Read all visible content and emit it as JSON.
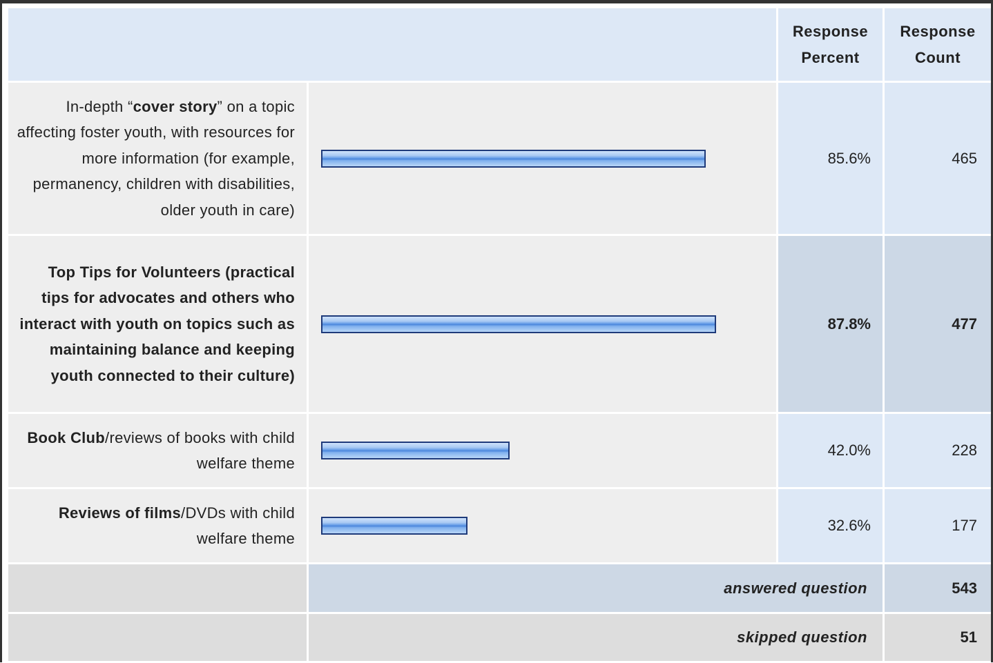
{
  "headers": {
    "percent": "Response Percent",
    "count": "Response Count"
  },
  "chart_data": {
    "type": "bar",
    "orientation": "horizontal",
    "categories": [
      "In-depth “cover story” on a topic affecting foster youth, with resources for more information (for example, permanency, children with disabilities, older youth in care)",
      "Top Tips for Volunteers (practical tips for advocates and others who interact with youth on topics such as maintaining balance and keeping youth connected to their culture)",
      "Book Club/reviews of books with child welfare theme",
      "Reviews of films/DVDs with child welfare theme"
    ],
    "values": [
      85.6,
      87.8,
      42.0,
      32.6
    ],
    "counts": [
      465,
      477,
      228,
      177
    ],
    "percent_labels": [
      "85.6%",
      "87.8%",
      "42.0%",
      "32.6%"
    ],
    "count_labels": [
      "465",
      "477",
      "228",
      "177"
    ],
    "xlim": [
      0,
      100
    ],
    "highlighted_index": 1,
    "bar_color": "#6aa0e8",
    "bar_border_color": "#1e3a7a"
  },
  "rows": [
    {
      "pre": "In-depth “",
      "bold": "cover story",
      "post": "” on a topic affecting foster youth, with resources for more information (for example, permanency, children with disabilities, older youth in care)"
    },
    {
      "pre": "",
      "bold": "Top Tips for Volunteers (practical tips for advocates and others who interact with youth on topics such as maintaining balance and keeping youth connected to their culture)",
      "post": ""
    },
    {
      "pre": "",
      "bold": "Book Club",
      "post": "/reviews of books with child welfare theme"
    },
    {
      "pre": "",
      "bold": "Reviews of films",
      "post": "/DVDs with child welfare theme"
    }
  ],
  "footer": {
    "answered_label": "answered question",
    "answered_count": "543",
    "skipped_label": "skipped question",
    "skipped_count": "51"
  }
}
